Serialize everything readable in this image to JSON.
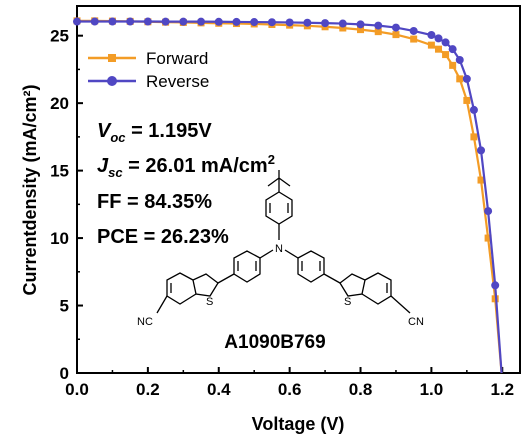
{
  "chart_data": {
    "type": "line",
    "xlabel": "Voltage (V)",
    "ylabel": "Currentdensity (mA/cm²)",
    "xlim": [
      0,
      1.25
    ],
    "ylim": [
      0,
      27.2
    ],
    "xticks": [
      "0.0",
      "0.2",
      "0.4",
      "0.6",
      "0.8",
      "1.0",
      "1.2"
    ],
    "yticks": [
      "0",
      "5",
      "10",
      "15",
      "20",
      "25"
    ],
    "legend_position": "top-left",
    "series": [
      {
        "name": "Forward",
        "color": "#F39C26",
        "marker": "square",
        "x": [
          0.0,
          0.05,
          0.1,
          0.15,
          0.2,
          0.25,
          0.3,
          0.35,
          0.4,
          0.45,
          0.5,
          0.55,
          0.6,
          0.65,
          0.7,
          0.75,
          0.8,
          0.85,
          0.9,
          0.95,
          1.0,
          1.02,
          1.04,
          1.06,
          1.08,
          1.1,
          1.12,
          1.14,
          1.16,
          1.18
        ],
        "y": [
          26.1,
          26.1,
          26.08,
          26.06,
          26.03,
          26.0,
          25.98,
          25.95,
          25.92,
          25.9,
          25.87,
          25.83,
          25.78,
          25.73,
          25.66,
          25.57,
          25.45,
          25.3,
          25.08,
          24.75,
          24.3,
          24.0,
          23.6,
          22.8,
          21.8,
          20.2,
          17.5,
          14.3,
          10.0,
          5.5
        ]
      },
      {
        "name": "Reverse",
        "color": "#5047C3",
        "marker": "circle",
        "x": [
          0.0,
          0.05,
          0.1,
          0.15,
          0.2,
          0.25,
          0.3,
          0.35,
          0.4,
          0.45,
          0.5,
          0.55,
          0.6,
          0.65,
          0.7,
          0.75,
          0.8,
          0.85,
          0.9,
          0.95,
          1.0,
          1.02,
          1.04,
          1.06,
          1.08,
          1.1,
          1.12,
          1.14,
          1.16,
          1.18
        ],
        "y": [
          26.05,
          26.05,
          26.05,
          26.05,
          26.05,
          26.04,
          26.04,
          26.04,
          26.03,
          26.02,
          26.01,
          26.0,
          25.98,
          25.96,
          25.93,
          25.9,
          25.84,
          25.75,
          25.6,
          25.35,
          25.05,
          24.8,
          24.5,
          24.0,
          23.2,
          21.8,
          19.5,
          16.5,
          12.0,
          6.5
        ]
      }
    ]
  },
  "annotations": {
    "voc_symbol": "V",
    "voc_sub": "oc",
    "voc_value": " = 1.195V",
    "jsc_symbol": "J",
    "jsc_sub": "sc",
    "jsc_value": " = 26.01 mA/cm",
    "jsc_sup": "2",
    "ff": "FF = 84.35%",
    "pce": "PCE = 26.23%"
  },
  "molecule": {
    "name": "A1090B769",
    "n_label": "N",
    "s_label": "S",
    "cn_label": "CN",
    "nc_label": "NC"
  }
}
